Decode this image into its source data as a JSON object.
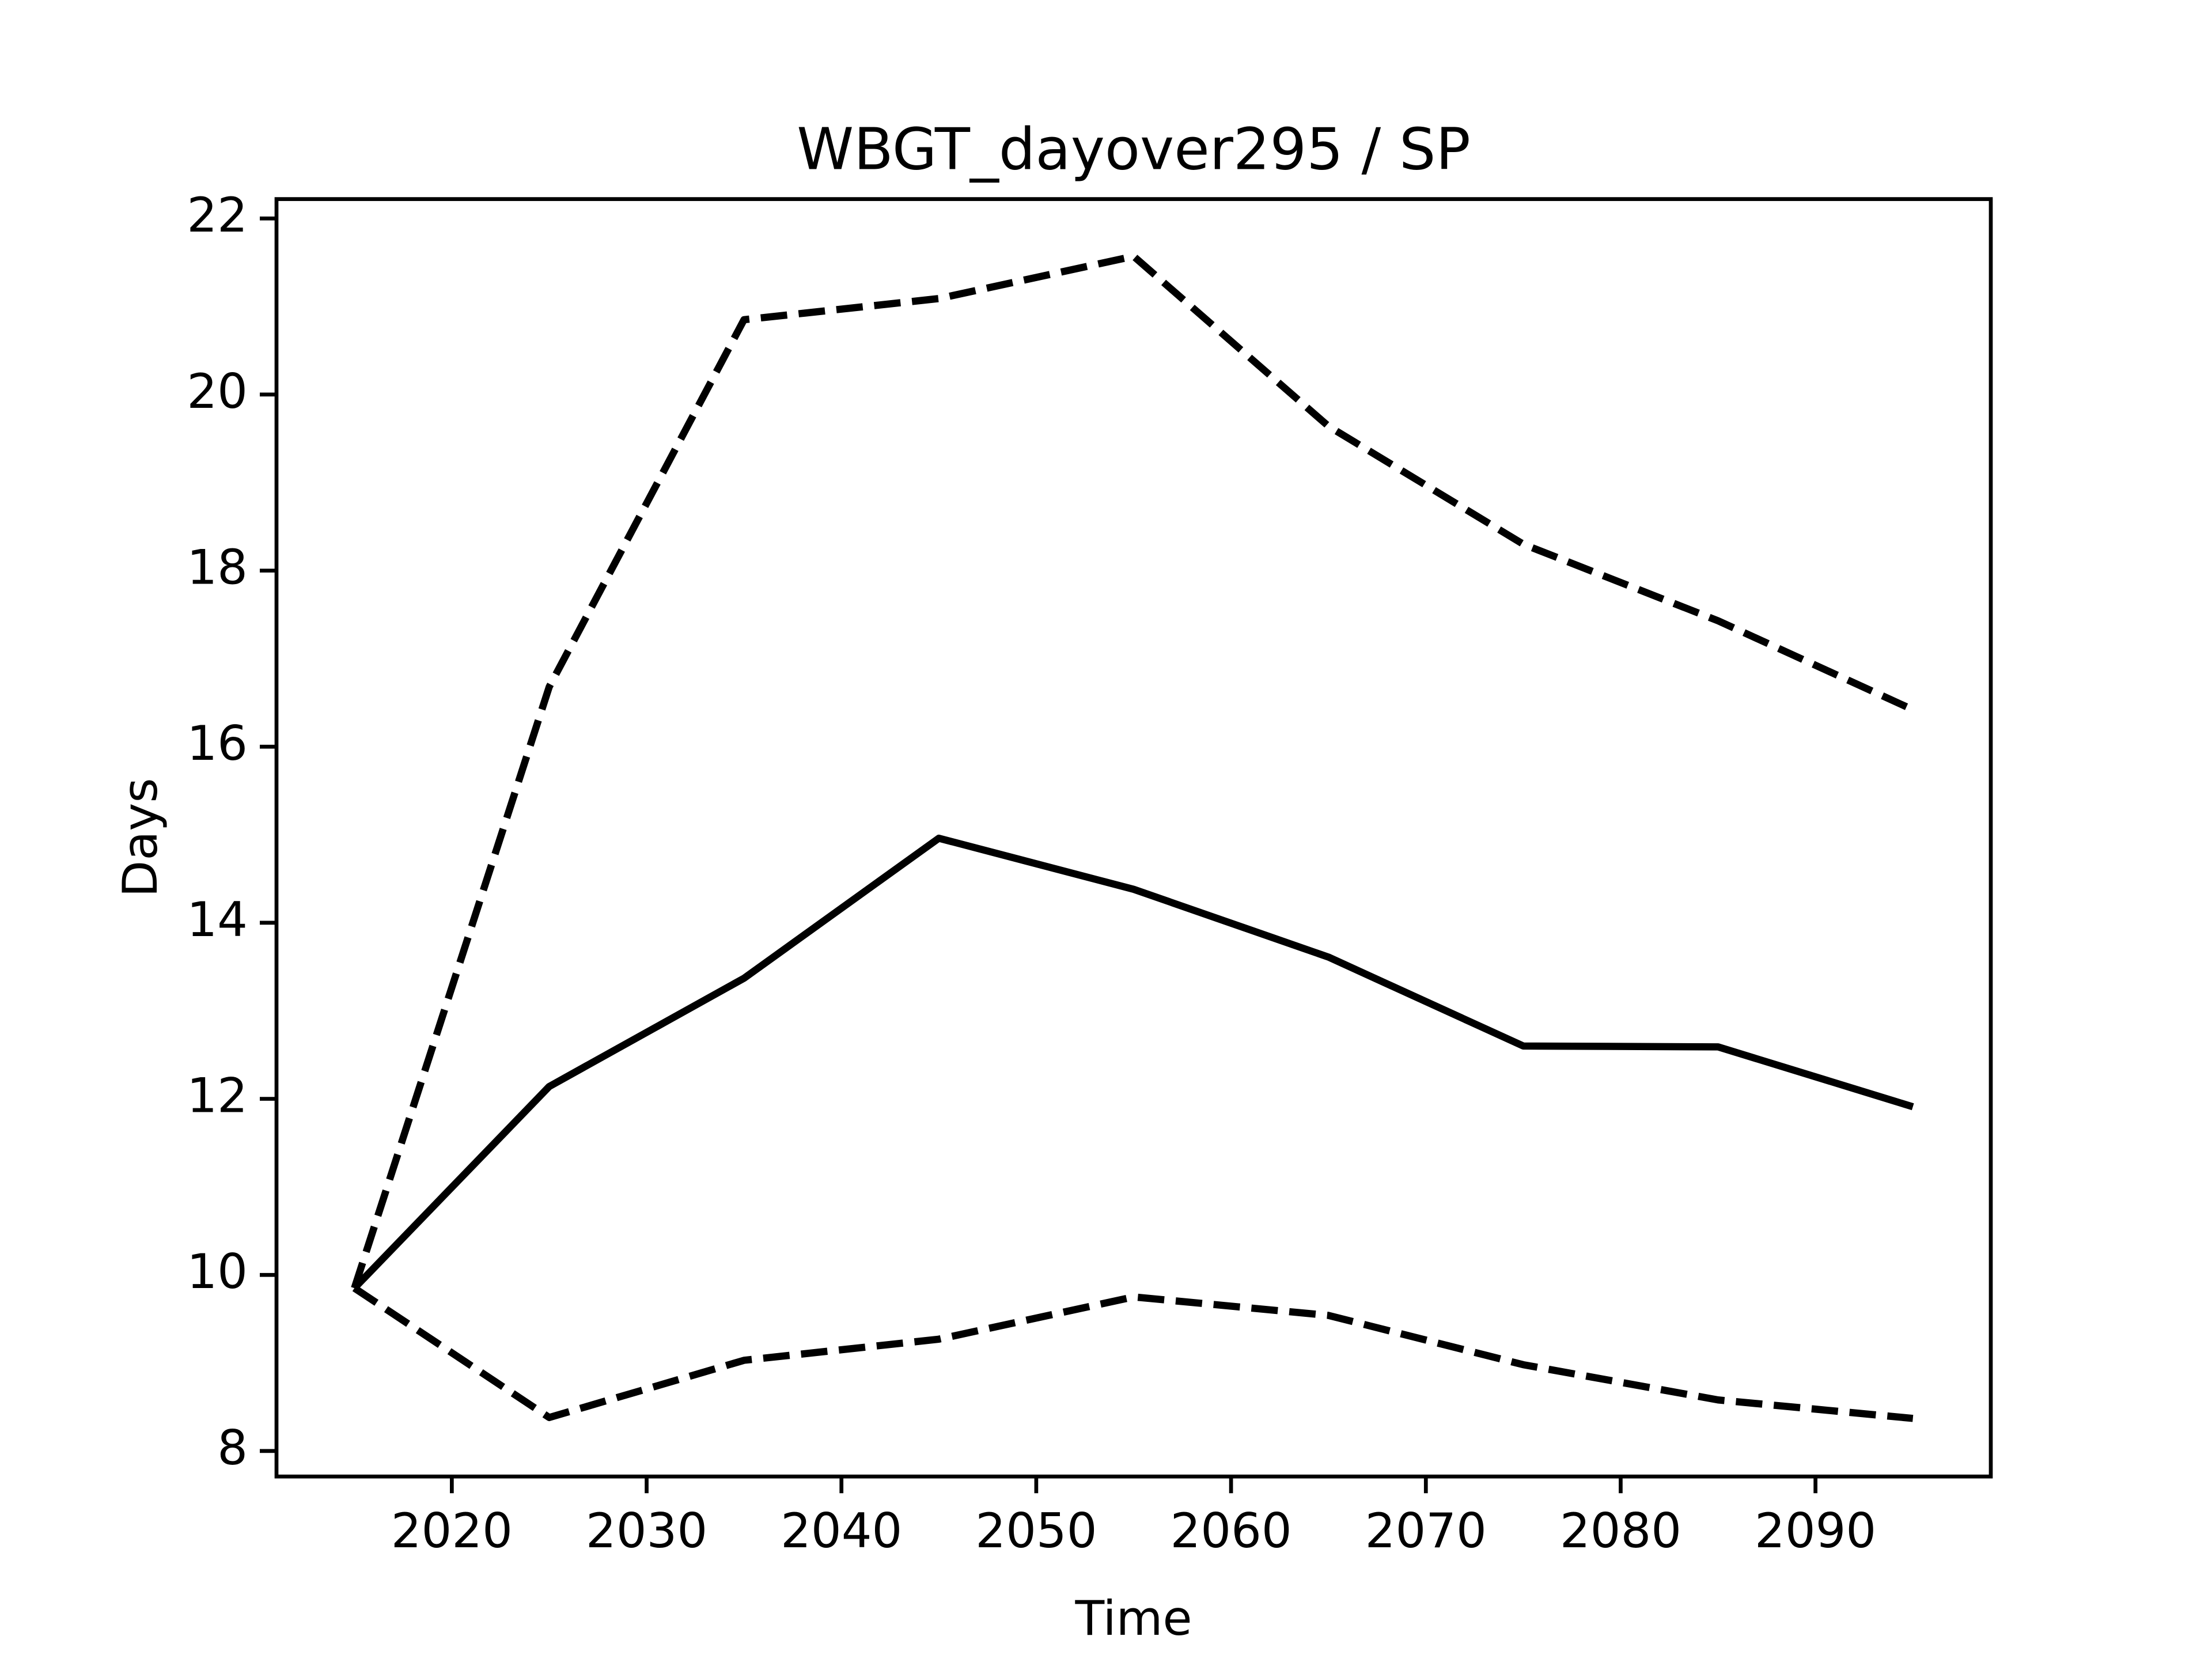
{
  "chart_data": {
    "type": "line",
    "title": "WBGT_dayover295 / SP",
    "xlabel": "Time",
    "ylabel": "Days",
    "x": [
      2015,
      2025,
      2035,
      2045,
      2055,
      2065,
      2075,
      2085,
      2095
    ],
    "series": [
      {
        "color": "#000000",
        "linestyle": "dashed",
        "values": [
          9.85,
          16.68,
          20.85,
          21.09,
          21.57,
          19.64,
          18.3,
          17.43,
          16.42
        ]
      },
      {
        "color": "#000000",
        "linestyle": "solid",
        "values": [
          9.85,
          12.14,
          13.37,
          14.96,
          14.38,
          13.61,
          12.6,
          12.59,
          11.91
        ]
      },
      {
        "color": "#000000",
        "linestyle": "dashed",
        "values": [
          9.85,
          8.38,
          9.03,
          9.27,
          9.75,
          9.54,
          8.98,
          8.58,
          8.37
        ]
      }
    ],
    "xlim": [
      2011,
      2099
    ],
    "ylim": [
      7.71,
      22.22
    ],
    "xticks": [
      2020,
      2030,
      2040,
      2050,
      2060,
      2070,
      2080,
      2090
    ],
    "yticks": [
      8,
      10,
      12,
      14,
      16,
      18,
      20,
      22
    ],
    "grid": false
  }
}
